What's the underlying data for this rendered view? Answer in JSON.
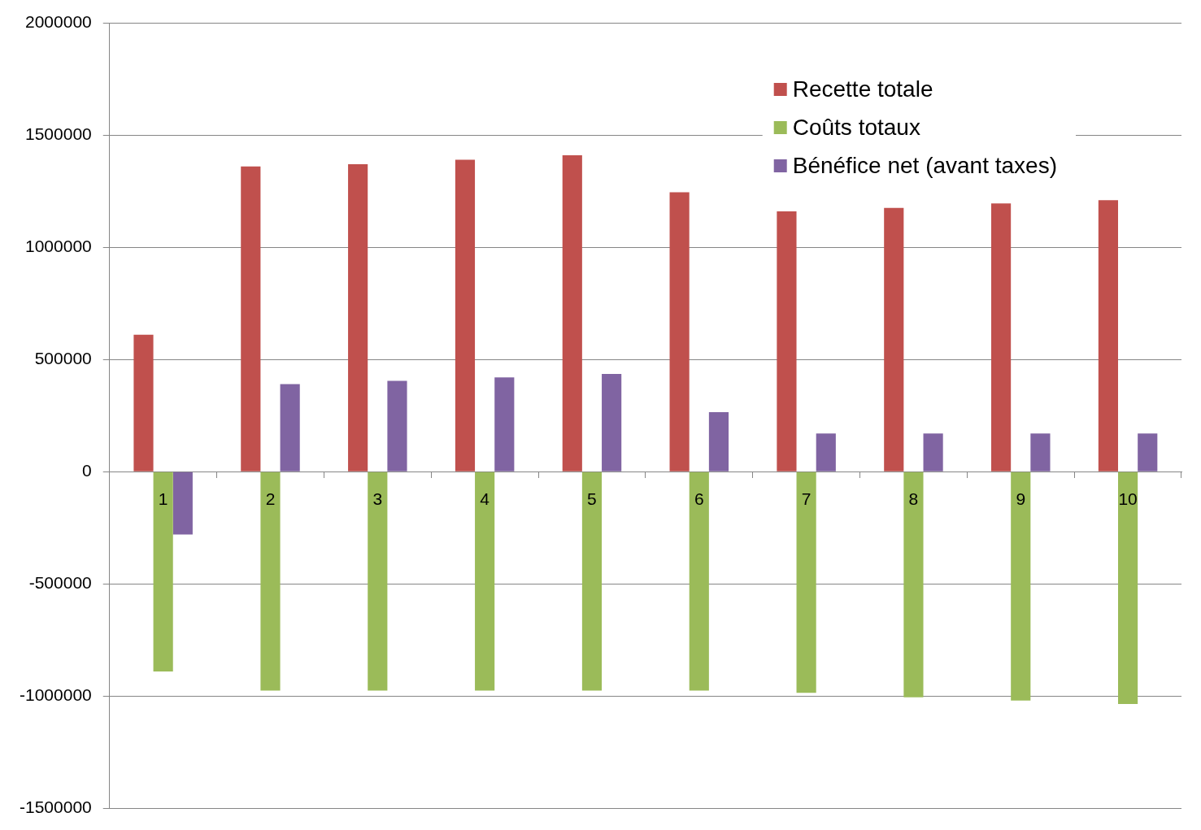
{
  "chart_data": {
    "type": "bar",
    "categories": [
      "1",
      "2",
      "3",
      "4",
      "5",
      "6",
      "7",
      "8",
      "9",
      "10"
    ],
    "series": [
      {
        "name": "Recette totale",
        "color": "#c0504d",
        "values": [
          610000,
          1360000,
          1370000,
          1390000,
          1410000,
          1245000,
          1160000,
          1175000,
          1195000,
          1210000
        ]
      },
      {
        "name": "Coûts totaux",
        "color": "#9bbb59",
        "values": [
          -890000,
          -975000,
          -975000,
          -975000,
          -975000,
          -975000,
          -985000,
          -1005000,
          -1020000,
          -1035000
        ]
      },
      {
        "name": "Bénéfice net (avant taxes)",
        "color": "#8064a2",
        "values": [
          -280000,
          390000,
          405000,
          420000,
          435000,
          265000,
          170000,
          170000,
          170000,
          170000
        ]
      }
    ],
    "ylim": [
      -1500000,
      2000000
    ],
    "yticks": [
      -1500000,
      -1000000,
      -500000,
      0,
      500000,
      1000000,
      1500000,
      2000000
    ],
    "grid": "y",
    "legend": "top right"
  }
}
